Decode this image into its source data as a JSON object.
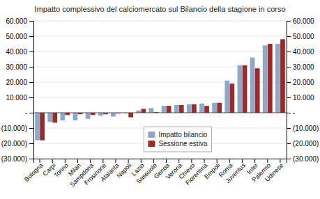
{
  "chart_data": {
    "type": "bar",
    "title": "Impatto complessivo del calciomercato sul Bilancio della stagione in corso",
    "categories": [
      "Bologna",
      "Carpi",
      "Torino",
      "Milan",
      "Sampdoria",
      "Frosinone",
      "Atalanta",
      "Napoli",
      "Lazio",
      "Sassuolo",
      "Genoa",
      "Verona",
      "Chievo",
      "Fiorentina",
      "Empoli",
      "Roma",
      "Juventus",
      "Inter",
      "Palermo",
      "Udinese"
    ],
    "series": [
      {
        "name": "Impatto bilancio",
        "color": "#8fa8c8",
        "values": [
          -18000,
          -6000,
          -5000,
          -5000,
          -4000,
          -2000,
          -2500,
          -500,
          1500,
          3000,
          4500,
          5000,
          5500,
          6000,
          6500,
          21000,
          31000,
          36000,
          44000,
          45000
        ]
      },
      {
        "name": "Sessione estiva",
        "color": "#9b2a2a",
        "values": [
          -18000,
          -6500,
          -1500,
          -1000,
          -1500,
          -1000,
          -500,
          -3000,
          2500,
          500,
          4500,
          5000,
          5500,
          4500,
          6500,
          19000,
          31000,
          29000,
          45000,
          48000
        ]
      }
    ],
    "ylim": [
      -30000,
      60000
    ],
    "yticks": [
      {
        "value": -30000,
        "label": "(30.000)"
      },
      {
        "value": -20000,
        "label": "(20.000)"
      },
      {
        "value": -10000,
        "label": "(10.000)"
      },
      {
        "value": 0,
        "label": "-"
      },
      {
        "value": 10000,
        "label": "10.000"
      },
      {
        "value": 20000,
        "label": "20.000"
      },
      {
        "value": 30000,
        "label": "30.000"
      },
      {
        "value": 40000,
        "label": "40.000"
      },
      {
        "value": 50000,
        "label": "50.000"
      },
      {
        "value": 60000,
        "label": "60.000"
      }
    ],
    "y2lim": [
      -30000,
      60000
    ],
    "y2ticks": [
      {
        "value": -30000,
        "label": "(30.000)"
      },
      {
        "value": -20000,
        "label": "(20.000)"
      },
      {
        "value": -10000,
        "label": "(10.000)"
      },
      {
        "value": 0,
        "label": "-"
      },
      {
        "value": 10000,
        "label": "10.000"
      },
      {
        "value": 20000,
        "label": "20.000"
      },
      {
        "value": 30000,
        "label": "30.000"
      },
      {
        "value": 40000,
        "label": "40.000"
      },
      {
        "value": 50000,
        "label": "50.000"
      },
      {
        "value": 60000,
        "label": "60.000"
      }
    ],
    "grid": true,
    "legend": "bottom"
  }
}
